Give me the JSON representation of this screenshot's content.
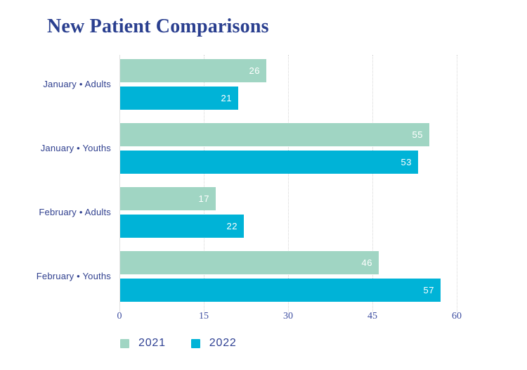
{
  "title": "New Patient Comparisons",
  "chart_data": {
    "type": "bar",
    "orientation": "horizontal",
    "title": "New Patient Comparisons",
    "categories": [
      "January • Adults",
      "January • Youths",
      "February • Adults",
      "February • Youths"
    ],
    "series": [
      {
        "name": "2021",
        "color": "#a0d5c3",
        "values": [
          26,
          55,
          17,
          46
        ]
      },
      {
        "name": "2022",
        "color": "#00b3d7",
        "values": [
          21,
          53,
          22,
          57
        ]
      }
    ],
    "xlim": [
      0,
      60
    ],
    "xticks": [
      0,
      15,
      30,
      45,
      60
    ],
    "grid": "vertical dotted gridlines at each tick, solid light line at 0",
    "value_labels": "white numerals inside right end of each bar",
    "legend_position": "bottom-left"
  },
  "legend": {
    "items": [
      {
        "label": "2021",
        "color": "#a0d5c3"
      },
      {
        "label": "2022",
        "color": "#00b3d7"
      }
    ]
  },
  "colors": {
    "background": "#ffffff",
    "title_text": "#2a3f8f",
    "category_text": "#30408f",
    "tick_text": "#3d4da0",
    "value_text": "#ffffff",
    "gridline": "#d6d6d6",
    "axis_line": "#e2e2e2",
    "series_2021": "#a0d5c3",
    "series_2022": "#00b3d7"
  }
}
